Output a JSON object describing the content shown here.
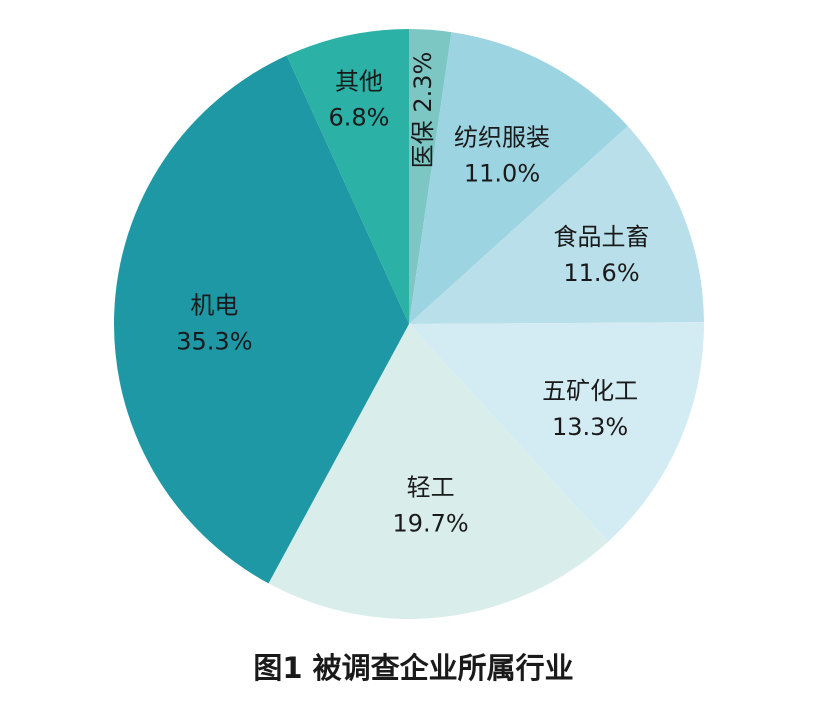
{
  "chart_data": {
    "type": "pie",
    "title": "图1 被调查企业所属行业",
    "slices": [
      {
        "name": "医保",
        "value": 2.3,
        "display": "2.3%",
        "color": "#7cc7c4"
      },
      {
        "name": "纺织服装",
        "value": 11.0,
        "display": "11.0%",
        "color": "#9dd4e1"
      },
      {
        "name": "食品土畜",
        "value": 11.6,
        "display": "11.6%",
        "color": "#b9e0ea"
      },
      {
        "name": "五矿化工",
        "value": 13.3,
        "display": "13.3%",
        "color": "#d3ecf3"
      },
      {
        "name": "轻工",
        "value": 19.7,
        "display": "19.7%",
        "color": "#d9eeea"
      },
      {
        "name": "机电",
        "value": 35.3,
        "display": "35.3%",
        "color": "#1f98a6"
      },
      {
        "name": "其他",
        "value": 6.8,
        "display": "6.8%",
        "color": "#2bb1a5"
      }
    ]
  }
}
